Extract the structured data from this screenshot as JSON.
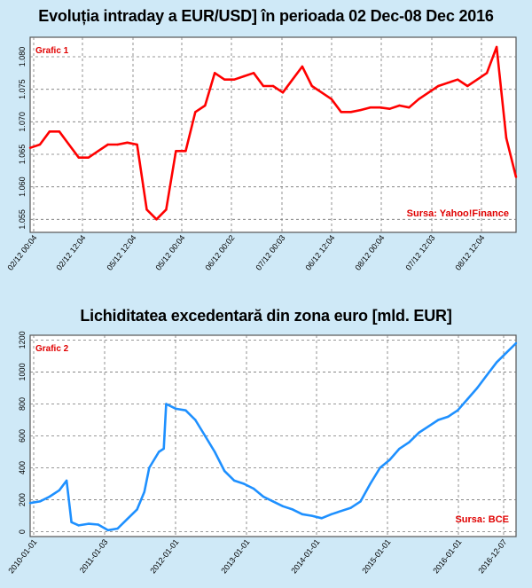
{
  "chart_data": [
    {
      "type": "line",
      "title": "Evoluția intraday a EUR/USD] în perioada 02 Dec-08 Dec 2016",
      "label": "Grafic 1",
      "source": "Sursa: Yahoo!Finance",
      "color": "#ff0000",
      "ylim": [
        1.053,
        1.083
      ],
      "yticks": [
        "1.055",
        "1.060",
        "1.065",
        "1.070",
        "1.075",
        "1.080"
      ],
      "ytick_values": [
        1.055,
        1.06,
        1.065,
        1.07,
        1.075,
        1.08
      ],
      "xticks": [
        "02/12 00:04",
        "02/12 12:04",
        "05/12 12:04",
        "05/12 00:04",
        "06/12 00:02",
        "07/12 00:03",
        "06/12 12:04",
        "08/12 00:04",
        "07/12 12:03",
        "08/12 12:04"
      ],
      "grid": true,
      "series": [
        {
          "x": [
            0,
            2,
            4,
            6,
            8,
            10,
            12,
            14,
            16,
            18,
            20,
            22,
            24,
            26,
            28,
            30,
            32,
            34,
            36,
            38,
            40,
            42,
            44,
            46,
            48,
            50,
            52,
            54,
            56,
            58,
            60,
            62,
            64,
            66,
            68,
            70,
            72,
            74,
            76,
            78,
            80,
            82,
            84,
            86,
            88,
            90,
            92,
            94,
            96,
            98,
            100
          ],
          "values": [
            1.066,
            1.0665,
            1.0685,
            1.0685,
            1.0665,
            1.0645,
            1.0645,
            1.0655,
            1.0665,
            1.0665,
            1.0668,
            1.0665,
            1.0565,
            1.055,
            1.0565,
            1.0655,
            1.0655,
            1.0715,
            1.0725,
            1.0775,
            1.0765,
            1.0765,
            1.077,
            1.0775,
            1.0755,
            1.0755,
            1.0745,
            1.0765,
            1.0785,
            1.0755,
            1.0745,
            1.0735,
            1.0715,
            1.0715,
            1.0718,
            1.0722,
            1.0722,
            1.072,
            1.0725,
            1.0722,
            1.0735,
            1.0745,
            1.0755,
            1.076,
            1.0765,
            1.0755,
            1.0765,
            1.0775,
            1.0815,
            1.0675,
            1.0615
          ]
        }
      ]
    },
    {
      "type": "line",
      "title": "Lichiditatea excedentară din zona euro [mld. EUR]",
      "label": "Grafic 2",
      "source": "Sursa: BCE",
      "color": "#1e90ff",
      "ylim": [
        -30,
        1230
      ],
      "yticks": [
        "0",
        "200",
        "400",
        "600",
        "800",
        "1000",
        "1200"
      ],
      "ytick_values": [
        0,
        200,
        400,
        600,
        800,
        1000,
        1200
      ],
      "xticks": [
        "2010-01-01",
        "2011-01-03",
        "2012-01-01",
        "2013-01-01",
        "2014-01-01",
        "2015-01-01",
        "2016-01-01",
        "2016-12-07"
      ],
      "grid": true,
      "series": [
        {
          "x": [
            0,
            2,
            4,
            6,
            7.5,
            8.5,
            10,
            12,
            14,
            16,
            18,
            20,
            22,
            23.5,
            24.5,
            26.5,
            27.5,
            28,
            30,
            32,
            34,
            36,
            38,
            40,
            42,
            44,
            46,
            48,
            50,
            52,
            54,
            56,
            58,
            60,
            62,
            64,
            66,
            68,
            70,
            72,
            74,
            76,
            78,
            80,
            82,
            84,
            86,
            88,
            90,
            92,
            94,
            96,
            98,
            100
          ],
          "values": [
            180,
            190,
            220,
            260,
            320,
            60,
            40,
            50,
            45,
            10,
            20,
            80,
            140,
            250,
            400,
            500,
            520,
            800,
            770,
            760,
            700,
            600,
            500,
            380,
            320,
            300,
            270,
            220,
            190,
            160,
            140,
            110,
            100,
            85,
            110,
            130,
            150,
            190,
            300,
            400,
            450,
            520,
            560,
            620,
            660,
            700,
            720,
            760,
            830,
            900,
            980,
            1060,
            1120,
            1180
          ]
        }
      ]
    }
  ]
}
